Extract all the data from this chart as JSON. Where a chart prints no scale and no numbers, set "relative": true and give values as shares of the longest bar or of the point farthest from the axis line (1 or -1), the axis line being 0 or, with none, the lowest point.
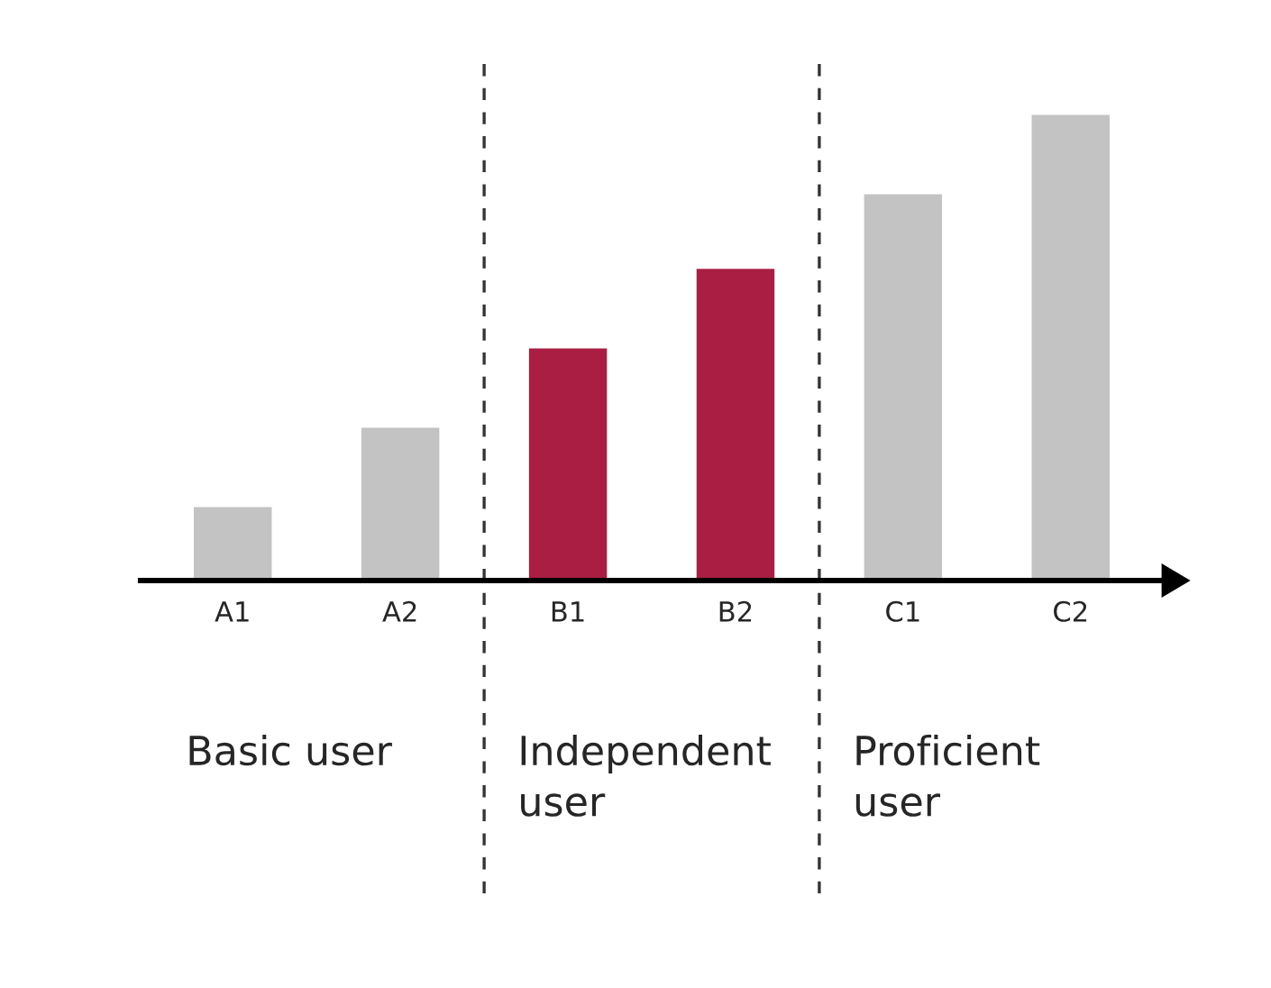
{
  "chart_data": {
    "type": "bar",
    "relative": true,
    "categories": [
      "A1",
      "A2",
      "B1",
      "B2",
      "C1",
      "C2"
    ],
    "values": [
      0.16,
      0.33,
      0.5,
      0.67,
      0.83,
      1
    ],
    "colors": [
      "#c3c3c3",
      "#c3c3c3",
      "#a91e42",
      "#a91e42",
      "#c3c3c3",
      "#c3c3c3"
    ],
    "annotations": [
      "Basic user",
      "Independent\nuser",
      "Proficient\nuser"
    ],
    "grid": false,
    "legend": false
  }
}
